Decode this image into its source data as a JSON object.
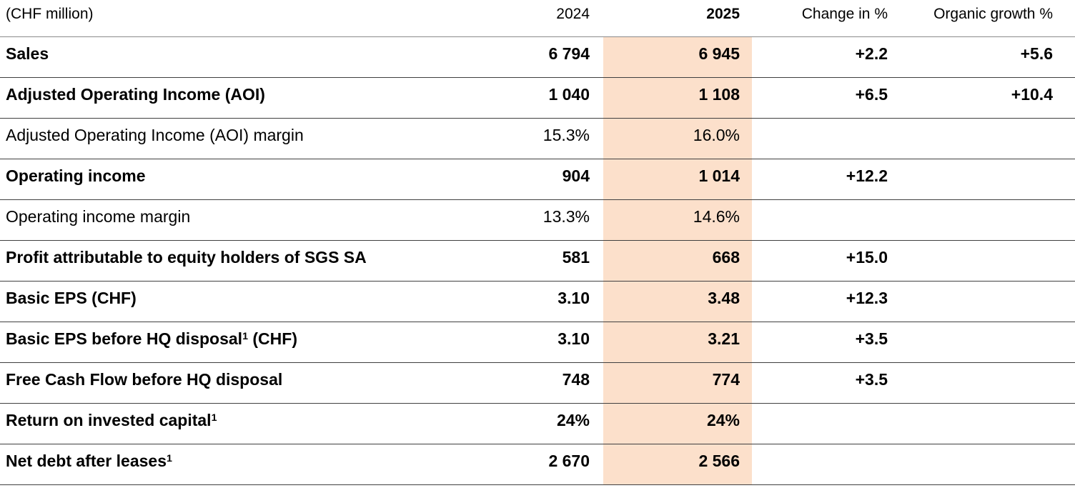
{
  "table": {
    "unit_label": "(CHF million)",
    "columns": {
      "year_prior": "2024",
      "year_current": "2025",
      "change": "Change in %",
      "organic": "Organic growth %"
    },
    "highlight_color": "#FCE0CB",
    "rows": [
      {
        "label": "Sales",
        "bold": true,
        "y2024": "6 794",
        "y2025": "6 945",
        "change": "+2.2",
        "organic": "+5.6"
      },
      {
        "label": "Adjusted Operating Income (AOI)",
        "bold": true,
        "y2024": "1 040",
        "y2025": "1 108",
        "change": "+6.5",
        "organic": "+10.4"
      },
      {
        "label": "Adjusted Operating Income (AOI) margin",
        "bold": false,
        "y2024": "15.3%",
        "y2025": "16.0%",
        "change": "",
        "organic": ""
      },
      {
        "label": "Operating income",
        "bold": true,
        "y2024": "904",
        "y2025": "1 014",
        "change": "+12.2",
        "organic": ""
      },
      {
        "label": "Operating income margin",
        "bold": false,
        "y2024": "13.3%",
        "y2025": "14.6%",
        "change": "",
        "organic": ""
      },
      {
        "label": "Profit attributable to equity holders of SGS SA",
        "bold": true,
        "y2024": "581",
        "y2025": "668",
        "change": "+15.0",
        "organic": ""
      },
      {
        "label": "Basic EPS (CHF)",
        "bold": true,
        "y2024": "3.10",
        "y2025": "3.48",
        "change": "+12.3",
        "organic": ""
      },
      {
        "label": "Basic EPS before HQ disposal",
        "sup": "1",
        "label_suffix": " (CHF)",
        "bold": true,
        "y2024": "3.10",
        "y2025": "3.21",
        "change": "+3.5",
        "organic": ""
      },
      {
        "label": "Free Cash Flow before HQ disposal",
        "bold": true,
        "y2024": "748",
        "y2025": "774",
        "change": "+3.5",
        "organic": ""
      },
      {
        "label": "Return on invested capital",
        "sup": "1",
        "bold": true,
        "y2024": "24%",
        "y2025": "24%",
        "change": "",
        "organic": ""
      },
      {
        "label": "Net debt after leases",
        "sup": "1",
        "bold": true,
        "y2024": "2 670",
        "y2025": "2 566",
        "change": "",
        "organic": ""
      }
    ]
  }
}
